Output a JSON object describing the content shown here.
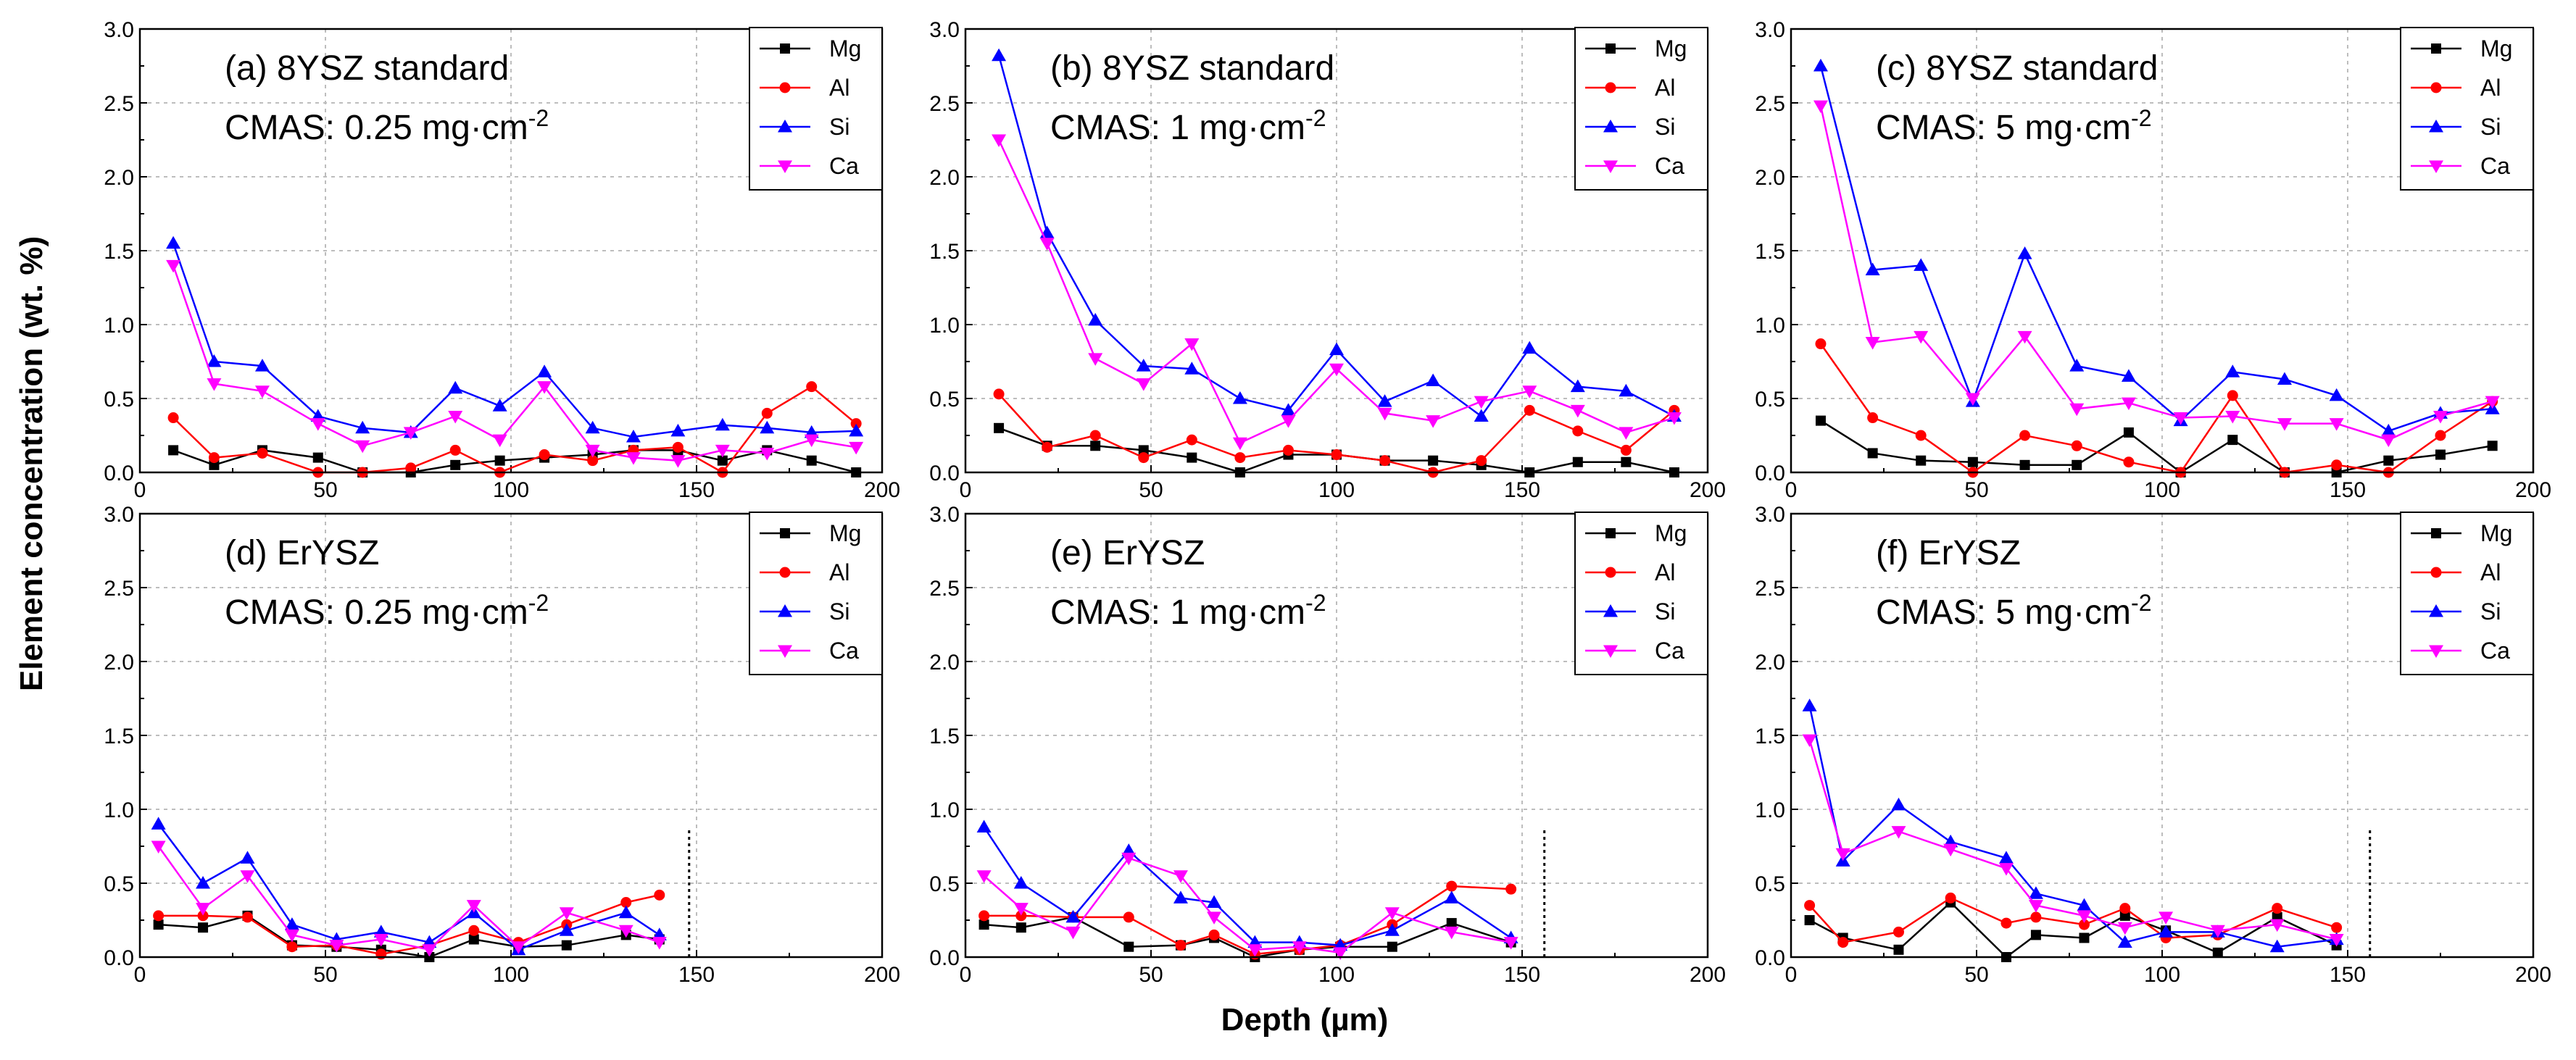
{
  "figure": {
    "ylabel": "Element concentration (wt. %)",
    "xlabel": "Depth (µm)"
  },
  "series_colors": {
    "Mg": "#000000",
    "Al": "#ff0000",
    "Si": "#0000ff",
    "Ca": "#ff00ff"
  },
  "chart_data": [
    {
      "type": "line",
      "panel": "a",
      "title": "(a) 8YSZ standard",
      "cmas_label": "CMAS: 0.25 mg·cm",
      "cmas_exp": "-2",
      "xlim": [
        0,
        200
      ],
      "ylim": [
        0,
        3.0
      ],
      "xticks": [
        "0",
        "50",
        "100",
        "150",
        "200"
      ],
      "yticks": [
        "0.0",
        "0.5",
        "1.0",
        "1.5",
        "2.0",
        "2.5",
        "3.0"
      ],
      "grid": true,
      "legend_position": "top-right",
      "series": [
        {
          "name": "Mg",
          "marker": "square",
          "x": [
            9,
            20,
            33,
            48,
            60,
            73,
            85,
            97,
            109,
            122,
            133,
            145,
            157,
            169,
            181,
            193
          ],
          "y": [
            0.15,
            0.05,
            0.15,
            0.1,
            0.0,
            0.0,
            0.05,
            0.08,
            0.1,
            0.12,
            0.15,
            0.15,
            0.08,
            0.15,
            0.08,
            0.0
          ]
        },
        {
          "name": "Al",
          "marker": "circle",
          "x": [
            9,
            20,
            33,
            48,
            60,
            73,
            85,
            97,
            109,
            122,
            133,
            145,
            157,
            169,
            181,
            193
          ],
          "y": [
            0.37,
            0.1,
            0.13,
            0.0,
            0.0,
            0.03,
            0.15,
            0.0,
            0.12,
            0.08,
            0.15,
            0.17,
            0.0,
            0.4,
            0.58,
            0.33
          ]
        },
        {
          "name": "Si",
          "marker": "triangle-up",
          "x": [
            9,
            20,
            33,
            48,
            60,
            73,
            85,
            97,
            109,
            122,
            133,
            145,
            157,
            169,
            181,
            193
          ],
          "y": [
            1.55,
            0.75,
            0.72,
            0.38,
            0.3,
            0.27,
            0.57,
            0.45,
            0.68,
            0.3,
            0.24,
            0.28,
            0.32,
            0.3,
            0.27,
            0.28
          ]
        },
        {
          "name": "Ca",
          "marker": "triangle-down",
          "x": [
            9,
            20,
            33,
            48,
            60,
            73,
            85,
            97,
            109,
            122,
            133,
            145,
            157,
            169,
            181,
            193
          ],
          "y": [
            1.4,
            0.6,
            0.55,
            0.33,
            0.18,
            0.27,
            0.38,
            0.22,
            0.58,
            0.15,
            0.1,
            0.08,
            0.15,
            0.13,
            0.22,
            0.17
          ]
        }
      ]
    },
    {
      "type": "line",
      "panel": "b",
      "title": "(b) 8YSZ standard",
      "cmas_label": "CMAS: 1 mg·cm",
      "cmas_exp": "-2",
      "xlim": [
        0,
        200
      ],
      "ylim": [
        0,
        3.0
      ],
      "xticks": [
        "0",
        "50",
        "100",
        "150",
        "200"
      ],
      "yticks": [
        "0.0",
        "0.5",
        "1.0",
        "1.5",
        "2.0",
        "2.5",
        "3.0"
      ],
      "grid": true,
      "legend_position": "top-right",
      "series": [
        {
          "name": "Mg",
          "marker": "square",
          "x": [
            9,
            22,
            35,
            48,
            61,
            74,
            87,
            100,
            113,
            126,
            139,
            152,
            165,
            178,
            191
          ],
          "y": [
            0.3,
            0.18,
            0.18,
            0.15,
            0.1,
            0.0,
            0.12,
            0.12,
            0.08,
            0.08,
            0.05,
            0.0,
            0.07,
            0.07,
            0.0
          ]
        },
        {
          "name": "Al",
          "marker": "circle",
          "x": [
            9,
            22,
            35,
            48,
            61,
            74,
            87,
            100,
            113,
            126,
            139,
            152,
            165,
            178,
            191
          ],
          "y": [
            0.53,
            0.17,
            0.25,
            0.1,
            0.22,
            0.1,
            0.15,
            0.12,
            0.08,
            0.0,
            0.08,
            0.42,
            0.28,
            0.15,
            0.42
          ]
        },
        {
          "name": "Si",
          "marker": "triangle-up",
          "x": [
            9,
            22,
            35,
            48,
            61,
            74,
            87,
            100,
            113,
            126,
            139,
            152,
            165,
            178,
            191
          ],
          "y": [
            2.82,
            1.62,
            1.03,
            0.72,
            0.7,
            0.5,
            0.42,
            0.83,
            0.48,
            0.62,
            0.38,
            0.84,
            0.58,
            0.55,
            0.38
          ]
        },
        {
          "name": "Ca",
          "marker": "triangle-down",
          "x": [
            9,
            22,
            35,
            48,
            61,
            74,
            87,
            100,
            113,
            126,
            139,
            152,
            165,
            178,
            191
          ],
          "y": [
            2.25,
            1.55,
            0.77,
            0.6,
            0.87,
            0.2,
            0.35,
            0.7,
            0.4,
            0.35,
            0.48,
            0.55,
            0.42,
            0.27,
            0.37
          ]
        }
      ]
    },
    {
      "type": "line",
      "panel": "c",
      "title": "(c) 8YSZ standard",
      "cmas_label": "CMAS: 5 mg·cm",
      "cmas_exp": "-2",
      "xlim": [
        0,
        200
      ],
      "ylim": [
        0,
        3.0
      ],
      "xticks": [
        "0",
        "50",
        "100",
        "150",
        "200"
      ],
      "yticks": [
        "0.0",
        "0.5",
        "1.0",
        "1.5",
        "2.0",
        "2.5",
        "3.0"
      ],
      "grid": true,
      "legend_position": "top-right",
      "series": [
        {
          "name": "Mg",
          "marker": "square",
          "x": [
            8,
            22,
            35,
            49,
            63,
            77,
            91,
            105,
            119,
            133,
            147,
            161,
            175,
            189
          ],
          "y": [
            0.35,
            0.13,
            0.08,
            0.07,
            0.05,
            0.05,
            0.27,
            0.0,
            0.22,
            0.0,
            0.0,
            0.08,
            0.12,
            0.18
          ]
        },
        {
          "name": "Al",
          "marker": "circle",
          "x": [
            8,
            22,
            35,
            49,
            63,
            77,
            91,
            105,
            119,
            133,
            147,
            161,
            175,
            189
          ],
          "y": [
            0.87,
            0.37,
            0.25,
            0.0,
            0.25,
            0.18,
            0.07,
            0.0,
            0.52,
            0.0,
            0.05,
            0.0,
            0.25,
            0.48
          ]
        },
        {
          "name": "Si",
          "marker": "triangle-up",
          "x": [
            8,
            22,
            35,
            49,
            63,
            77,
            91,
            105,
            119,
            133,
            147,
            161,
            175,
            189
          ],
          "y": [
            2.75,
            1.37,
            1.4,
            0.48,
            1.48,
            0.72,
            0.65,
            0.35,
            0.68,
            0.63,
            0.52,
            0.28,
            0.4,
            0.43
          ]
        },
        {
          "name": "Ca",
          "marker": "triangle-down",
          "x": [
            8,
            22,
            35,
            49,
            63,
            77,
            91,
            105,
            119,
            133,
            147,
            161,
            175,
            189
          ],
          "y": [
            2.48,
            0.88,
            0.92,
            0.5,
            0.92,
            0.43,
            0.47,
            0.37,
            0.38,
            0.33,
            0.33,
            0.22,
            0.38,
            0.48
          ]
        }
      ]
    },
    {
      "type": "line",
      "panel": "d",
      "title": "(d) ErYSZ",
      "cmas_label": "CMAS: 0.25 mg·cm",
      "cmas_exp": "-2",
      "xlim": [
        0,
        200
      ],
      "ylim": [
        0,
        3.0
      ],
      "xticks": [
        "0",
        "50",
        "100",
        "150",
        "200"
      ],
      "yticks": [
        "0.0",
        "0.5",
        "1.0",
        "1.5",
        "2.0",
        "2.5",
        "3.0"
      ],
      "grid": true,
      "legend_position": "top-right",
      "marker_line_x": 148,
      "series": [
        {
          "name": "Mg",
          "marker": "square",
          "x": [
            5,
            17,
            29,
            41,
            53,
            65,
            78,
            90,
            102,
            115,
            131,
            140
          ],
          "y": [
            0.22,
            0.2,
            0.28,
            0.08,
            0.07,
            0.05,
            0.0,
            0.12,
            0.07,
            0.08,
            0.15,
            0.12
          ]
        },
        {
          "name": "Al",
          "marker": "circle",
          "x": [
            5,
            17,
            29,
            41,
            53,
            65,
            78,
            90,
            102,
            115,
            131,
            140
          ],
          "y": [
            0.28,
            0.28,
            0.27,
            0.07,
            0.08,
            0.02,
            0.08,
            0.18,
            0.1,
            0.22,
            0.37,
            0.42
          ]
        },
        {
          "name": "Si",
          "marker": "triangle-up",
          "x": [
            5,
            17,
            29,
            41,
            53,
            65,
            78,
            90,
            102,
            115,
            131,
            140
          ],
          "y": [
            0.9,
            0.5,
            0.67,
            0.22,
            0.12,
            0.17,
            0.1,
            0.3,
            0.05,
            0.18,
            0.3,
            0.15
          ]
        },
        {
          "name": "Ca",
          "marker": "triangle-down",
          "x": [
            5,
            17,
            29,
            41,
            53,
            65,
            78,
            90,
            102,
            115,
            131,
            140
          ],
          "y": [
            0.75,
            0.33,
            0.55,
            0.15,
            0.08,
            0.12,
            0.05,
            0.35,
            0.07,
            0.3,
            0.18,
            0.1
          ]
        }
      ]
    },
    {
      "type": "line",
      "panel": "e",
      "title": "(e) ErYSZ",
      "cmas_label": "CMAS: 1 mg·cm",
      "cmas_exp": "-2",
      "xlim": [
        0,
        200
      ],
      "ylim": [
        0,
        3.0
      ],
      "xticks": [
        "0",
        "50",
        "100",
        "150",
        "200"
      ],
      "yticks": [
        "0.0",
        "0.5",
        "1.0",
        "1.5",
        "2.0",
        "2.5",
        "3.0"
      ],
      "grid": true,
      "legend_position": "top-right",
      "marker_line_x": 156,
      "series": [
        {
          "name": "Mg",
          "marker": "square",
          "x": [
            5,
            15,
            29,
            44,
            58,
            67,
            78,
            90,
            101,
            115,
            131,
            147
          ],
          "y": [
            0.22,
            0.2,
            0.27,
            0.07,
            0.08,
            0.13,
            0.0,
            0.05,
            0.07,
            0.07,
            0.23,
            0.1
          ]
        },
        {
          "name": "Al",
          "marker": "circle",
          "x": [
            5,
            15,
            29,
            44,
            58,
            67,
            78,
            90,
            101,
            115,
            131,
            147
          ],
          "y": [
            0.28,
            0.28,
            0.27,
            0.27,
            0.08,
            0.15,
            0.02,
            0.05,
            0.08,
            0.22,
            0.48,
            0.46
          ]
        },
        {
          "name": "Si",
          "marker": "triangle-up",
          "x": [
            5,
            15,
            29,
            44,
            58,
            67,
            78,
            90,
            101,
            115,
            131,
            147
          ],
          "y": [
            0.88,
            0.5,
            0.27,
            0.72,
            0.4,
            0.37,
            0.1,
            0.1,
            0.08,
            0.18,
            0.4,
            0.13
          ]
        },
        {
          "name": "Ca",
          "marker": "triangle-down",
          "x": [
            5,
            15,
            29,
            44,
            58,
            67,
            78,
            90,
            101,
            115,
            131,
            147
          ],
          "y": [
            0.55,
            0.33,
            0.17,
            0.67,
            0.55,
            0.27,
            0.05,
            0.07,
            0.03,
            0.3,
            0.17,
            0.1
          ]
        }
      ]
    },
    {
      "type": "line",
      "panel": "f",
      "title": "(f) ErYSZ",
      "cmas_label": "CMAS: 5 mg·cm",
      "cmas_exp": "-2",
      "xlim": [
        0,
        200
      ],
      "ylim": [
        0,
        3.0
      ],
      "xticks": [
        "0",
        "50",
        "100",
        "150",
        "200"
      ],
      "yticks": [
        "0.0",
        "0.5",
        "1.0",
        "1.5",
        "2.0",
        "2.5",
        "3.0"
      ],
      "grid": true,
      "legend_position": "top-right",
      "marker_line_x": 156,
      "series": [
        {
          "name": "Mg",
          "marker": "square",
          "x": [
            5,
            14,
            29,
            43,
            58,
            66,
            79,
            90,
            101,
            115,
            131,
            147
          ],
          "y": [
            0.25,
            0.13,
            0.05,
            0.37,
            0.0,
            0.15,
            0.13,
            0.28,
            0.18,
            0.03,
            0.27,
            0.08
          ]
        },
        {
          "name": "Al",
          "marker": "circle",
          "x": [
            5,
            14,
            29,
            43,
            58,
            66,
            79,
            90,
            101,
            115,
            131,
            147
          ],
          "y": [
            0.35,
            0.1,
            0.17,
            0.4,
            0.23,
            0.27,
            0.22,
            0.33,
            0.13,
            0.15,
            0.33,
            0.2
          ]
        },
        {
          "name": "Si",
          "marker": "triangle-up",
          "x": [
            5,
            14,
            29,
            43,
            58,
            66,
            79,
            90,
            101,
            115,
            131,
            147
          ],
          "y": [
            1.7,
            0.65,
            1.03,
            0.78,
            0.67,
            0.43,
            0.35,
            0.1,
            0.17,
            0.17,
            0.07,
            0.12
          ]
        },
        {
          "name": "Ca",
          "marker": "triangle-down",
          "x": [
            5,
            14,
            29,
            43,
            58,
            66,
            79,
            90,
            101,
            115,
            131,
            147
          ],
          "y": [
            1.47,
            0.7,
            0.85,
            0.73,
            0.6,
            0.35,
            0.28,
            0.2,
            0.27,
            0.18,
            0.22,
            0.12
          ]
        }
      ]
    }
  ]
}
